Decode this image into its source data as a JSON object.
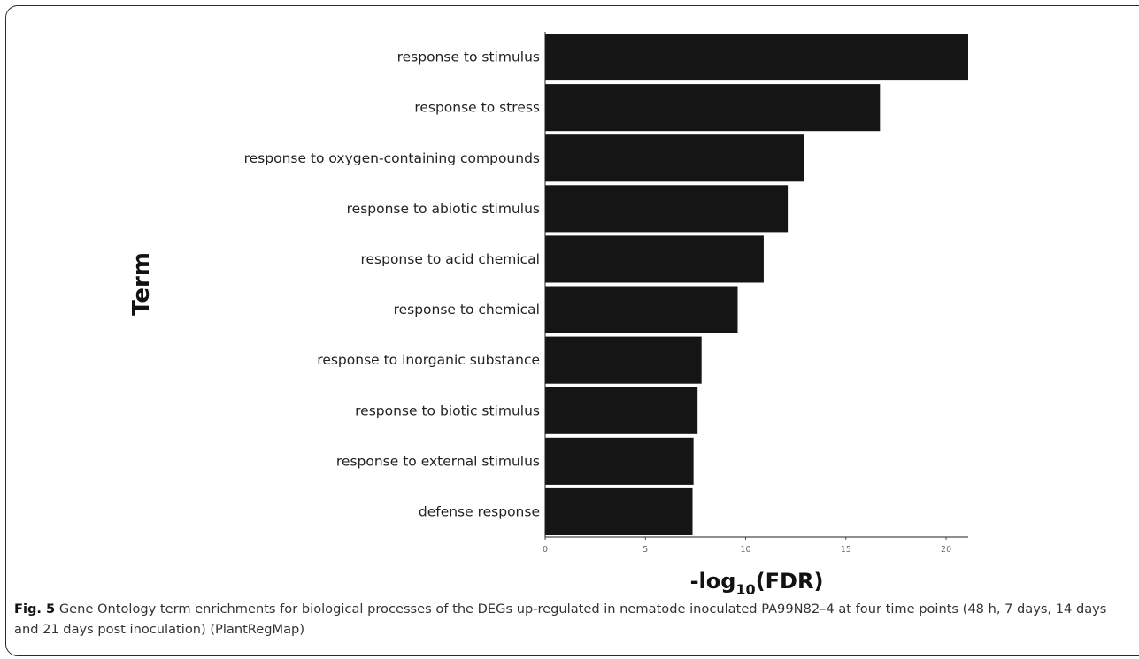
{
  "figure": {
    "number": "Fig. 5",
    "caption": "Gene Ontology term enrichments for biological processes of the DEGs up-regulated in nematode inoculated PA99N82–4 at four time points (48 h, 7 days, 14 days and 21 days post inoculation) (PlantRegMap)"
  },
  "chart_data": {
    "type": "bar",
    "orientation": "horizontal",
    "categories": [
      "response to stimulus",
      "response to stress",
      "response to oxygen-containing compounds",
      "response to abiotic stimulus",
      "response to acid chemical",
      "response to chemical",
      "response to inorganic substance",
      "response to biotic stimulus",
      "response to external stimulus",
      "defense response"
    ],
    "values": [
      21.1,
      16.7,
      12.9,
      12.1,
      10.9,
      9.6,
      7.8,
      7.6,
      7.4,
      7.35
    ],
    "xlabel": {
      "main": "-log",
      "subscript": "10",
      "suffix": "(FDR)"
    },
    "ylabel": "Term",
    "xlim": [
      0,
      21.1
    ],
    "xticks": [
      0,
      5,
      10,
      15,
      20
    ],
    "bar_color": "#151515",
    "grid": false
  }
}
